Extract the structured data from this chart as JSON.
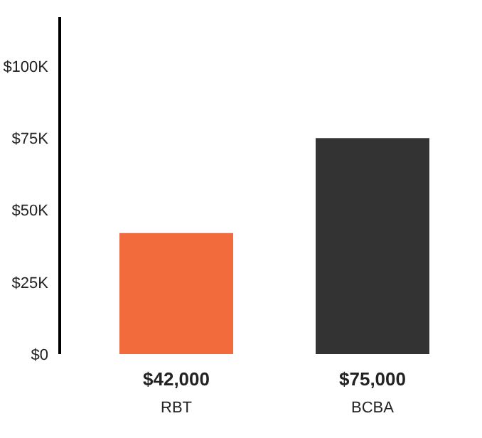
{
  "chart_data": {
    "type": "bar",
    "categories": [
      "RBT",
      "BCBA"
    ],
    "values": [
      42000,
      75000
    ],
    "colors": [
      "#f26b3d",
      "#333333"
    ],
    "value_labels": [
      "$42,000",
      "$75,000"
    ],
    "ylim": [
      0,
      117000
    ],
    "yticks": [
      {
        "value": 0,
        "label": "$0"
      },
      {
        "value": 25000,
        "label": "$25K"
      },
      {
        "value": 50000,
        "label": "$50K"
      },
      {
        "value": 75000,
        "label": "$75K"
      },
      {
        "value": 100000,
        "label": "$100K"
      }
    ],
    "grid": false,
    "legend": false
  }
}
